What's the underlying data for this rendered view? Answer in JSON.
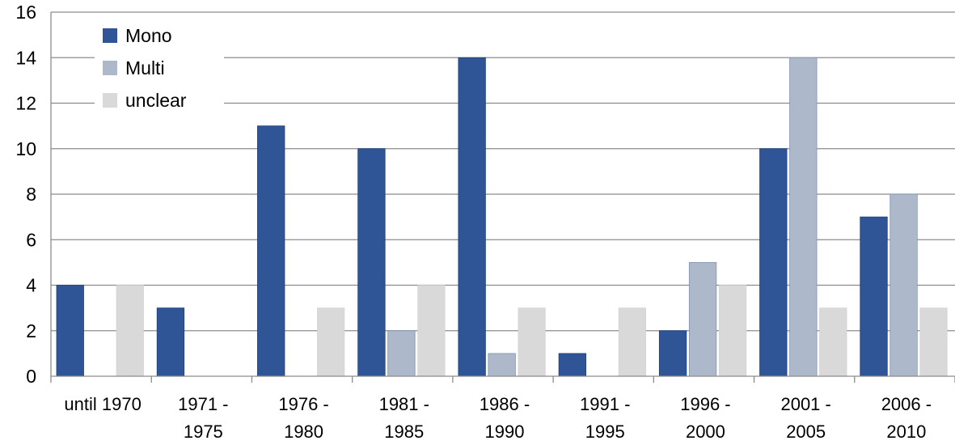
{
  "chart_data": {
    "type": "bar",
    "title": "",
    "xlabel": "",
    "ylabel": "",
    "ylim": [
      0,
      16
    ],
    "y_ticks": [
      0,
      2,
      4,
      6,
      8,
      10,
      12,
      14,
      16
    ],
    "grid": true,
    "legend_position": "top-left",
    "categories": [
      [
        "until 1970"
      ],
      [
        "1971 -",
        "1975"
      ],
      [
        "1976 -",
        "1980"
      ],
      [
        "1981 -",
        "1985"
      ],
      [
        "1986 -",
        "1990"
      ],
      [
        "1991 -",
        "1995"
      ],
      [
        "1996 -",
        "2000"
      ],
      [
        "2001 -",
        "2005"
      ],
      [
        "2006 -",
        "2010"
      ]
    ],
    "series": [
      {
        "name": "Mono",
        "color": "#2f5597",
        "values": [
          4,
          3,
          11,
          10,
          14,
          1,
          2,
          10,
          7
        ]
      },
      {
        "name": "Multi",
        "color": "#adb9ca",
        "values": [
          0,
          0,
          0,
          2,
          1,
          0,
          5,
          14,
          8
        ]
      },
      {
        "name": "unclear",
        "color": "#d9d9d9",
        "values": [
          4,
          0,
          3,
          4,
          3,
          3,
          4,
          3,
          3
        ]
      }
    ]
  }
}
